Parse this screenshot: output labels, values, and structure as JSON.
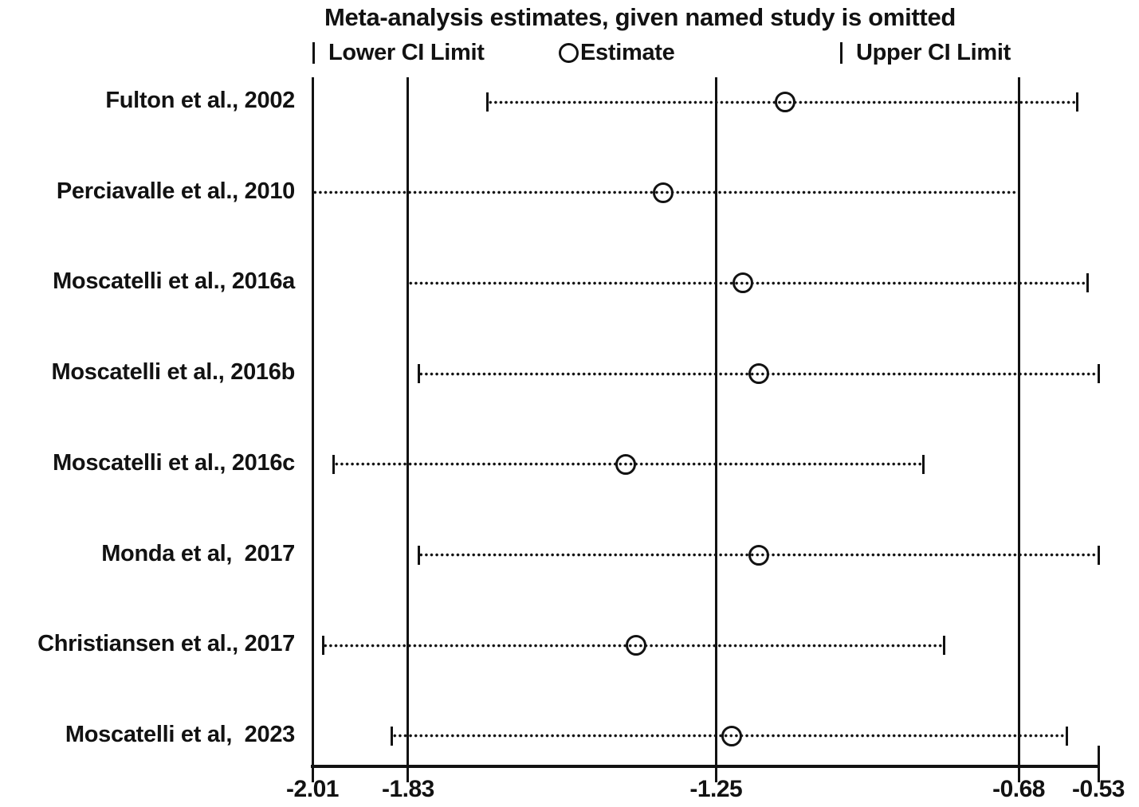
{
  "title": "Meta-analysis estimates, given named study is omitted",
  "legend": {
    "lower_label": "Lower CI Limit",
    "estimate_label": "Estimate",
    "upper_label": "Upper CI Limit"
  },
  "colors": {
    "ink": "#121212",
    "background": "#ffffff"
  },
  "chart_data": {
    "type": "forest",
    "title": "Meta-analysis estimates, given named study is omitted",
    "xlabel": "",
    "ylabel": "",
    "xlim": [
      -2.01,
      -0.53
    ],
    "x_ticks": [
      -2.01,
      -1.83,
      -1.25,
      -0.68,
      -0.53
    ],
    "reference_lines": [
      -2.01,
      -1.83,
      -1.25,
      -0.68
    ],
    "grid": false,
    "legend_position": "top",
    "studies": [
      {
        "label": "Fulton et al., 2002",
        "lower": -1.68,
        "estimate": -1.12,
        "upper": -0.57
      },
      {
        "label": "Perciavalle et al., 2010",
        "lower": -2.01,
        "estimate": -1.35,
        "upper": -0.68
      },
      {
        "label": "Moscatelli et al., 2016a",
        "lower": -1.83,
        "estimate": -1.2,
        "upper": -0.55
      },
      {
        "label": "Moscatelli et al., 2016b",
        "lower": -1.81,
        "estimate": -1.17,
        "upper": -0.53
      },
      {
        "label": "Moscatelli et al., 2016c",
        "lower": -1.97,
        "estimate": -1.42,
        "upper": -0.86
      },
      {
        "label": "Monda et al,  2017",
        "lower": -1.81,
        "estimate": -1.17,
        "upper": -0.53
      },
      {
        "label": "Christiansen et al., 2017",
        "lower": -1.99,
        "estimate": -1.4,
        "upper": -0.82
      },
      {
        "label": "Moscatelli et al,  2023",
        "lower": -1.86,
        "estimate": -1.22,
        "upper": -0.59
      }
    ]
  }
}
